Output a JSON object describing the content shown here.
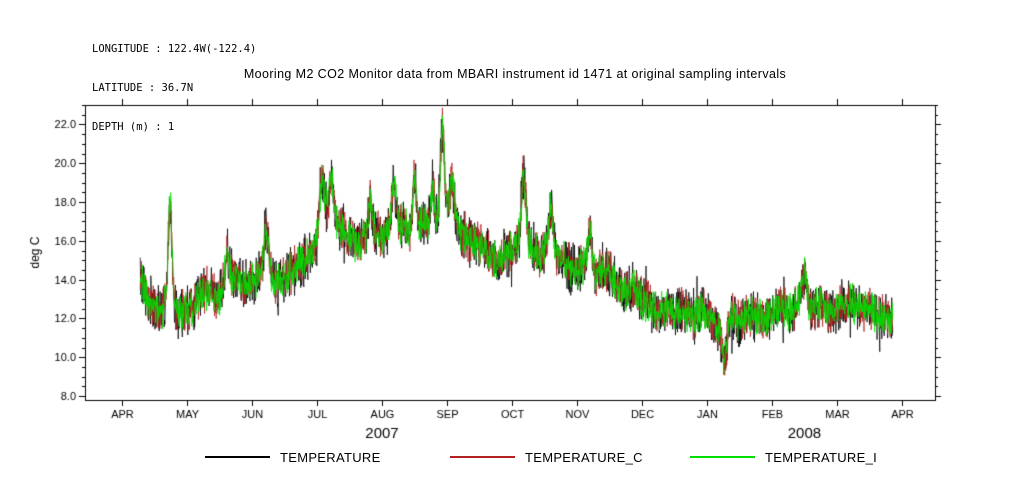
{
  "header": {
    "longitude": "LONGITUDE : 122.4W(-122.4)",
    "latitude": "LATITUDE : 36.7N",
    "depth": "DEPTH (m) : 1"
  },
  "title": "Mooring M2 CO2 Monitor data from MBARI instrument id 1471 at original sampling intervals",
  "chart_data": {
    "type": "line",
    "title": "Mooring M2 CO2 Monitor data from MBARI instrument id 1471 at original sampling intervals",
    "ylabel": "deg C",
    "ylim": [
      8.0,
      22.0
    ],
    "ytick_step": 2.0,
    "grid": false,
    "legend_position": "bottom",
    "x_tick_labels": [
      "APR",
      "MAY",
      "JUN",
      "JUL",
      "AUG",
      "SEP",
      "OCT",
      "NOV",
      "DEC",
      "JAN",
      "FEB",
      "MAR",
      "APR"
    ],
    "year_labels": [
      {
        "label": "2007",
        "center_month": 4.0
      },
      {
        "label": "2008",
        "center_month": 10.5
      }
    ],
    "x_range_months": [
      0.28,
      11.86
    ],
    "series": [
      {
        "name": "TEMPERATURE",
        "color": "#000000",
        "noise_amp": 1.5
      },
      {
        "name": "TEMPERATURE_C",
        "color": "#b22222",
        "noise_amp": 1.3
      },
      {
        "name": "TEMPERATURE_I",
        "color": "#00dd00",
        "noise_amp": 1.15
      }
    ],
    "baseline_anchors": [
      [
        0.28,
        14.2
      ],
      [
        0.4,
        13.0
      ],
      [
        0.55,
        12.4
      ],
      [
        0.7,
        12.6
      ],
      [
        0.85,
        12.2
      ],
      [
        1.0,
        12.4
      ],
      [
        1.15,
        12.8
      ],
      [
        1.3,
        13.5
      ],
      [
        1.45,
        13.0
      ],
      [
        1.6,
        13.8
      ],
      [
        1.75,
        14.2
      ],
      [
        1.9,
        13.6
      ],
      [
        2.05,
        13.9
      ],
      [
        2.2,
        14.8
      ],
      [
        2.35,
        13.8
      ],
      [
        2.5,
        14.2
      ],
      [
        2.65,
        14.6
      ],
      [
        2.8,
        14.9
      ],
      [
        2.95,
        15.5
      ],
      [
        3.1,
        16.8
      ],
      [
        3.25,
        17.3
      ],
      [
        3.4,
        16.5
      ],
      [
        3.55,
        15.9
      ],
      [
        3.7,
        16.1
      ],
      [
        3.85,
        16.6
      ],
      [
        4.0,
        16.2
      ],
      [
        4.15,
        16.5
      ],
      [
        4.3,
        16.9
      ],
      [
        4.45,
        16.4
      ],
      [
        4.6,
        17.0
      ],
      [
        4.75,
        16.7
      ],
      [
        4.9,
        17.2
      ],
      [
        5.05,
        17.5
      ],
      [
        5.2,
        16.6
      ],
      [
        5.35,
        16.0
      ],
      [
        5.5,
        15.8
      ],
      [
        5.65,
        15.3
      ],
      [
        5.8,
        15.0
      ],
      [
        5.95,
        15.4
      ],
      [
        6.1,
        15.8
      ],
      [
        6.3,
        15.6
      ],
      [
        6.45,
        15.2
      ],
      [
        6.55,
        15.9
      ],
      [
        6.7,
        15.3
      ],
      [
        6.85,
        14.7
      ],
      [
        7.0,
        14.4
      ],
      [
        7.15,
        14.9
      ],
      [
        7.3,
        14.3
      ],
      [
        7.45,
        14.6
      ],
      [
        7.6,
        13.8
      ],
      [
        7.75,
        13.3
      ],
      [
        7.9,
        13.5
      ],
      [
        8.05,
        12.9
      ],
      [
        8.2,
        12.4
      ],
      [
        8.35,
        12.6
      ],
      [
        8.5,
        12.2
      ],
      [
        8.65,
        12.6
      ],
      [
        8.8,
        12.1
      ],
      [
        8.95,
        12.3
      ],
      [
        9.1,
        11.9
      ],
      [
        9.25,
        11.6
      ],
      [
        9.4,
        12.1
      ],
      [
        9.55,
        11.8
      ],
      [
        9.7,
        12.3
      ],
      [
        9.85,
        11.9
      ],
      [
        10.0,
        12.2
      ],
      [
        10.15,
        12.6
      ],
      [
        10.3,
        12.3
      ],
      [
        10.45,
        12.9
      ],
      [
        10.6,
        12.5
      ],
      [
        10.75,
        12.8
      ],
      [
        10.9,
        12.3
      ],
      [
        11.05,
        12.6
      ],
      [
        11.2,
        12.9
      ],
      [
        11.35,
        12.4
      ],
      [
        11.5,
        12.6
      ],
      [
        11.65,
        12.1
      ],
      [
        11.86,
        11.9
      ]
    ],
    "spikes": [
      [
        0.74,
        5.2,
        0.045
      ],
      [
        1.62,
        1.6,
        0.04
      ],
      [
        2.22,
        2.0,
        0.045
      ],
      [
        3.08,
        2.6,
        0.055
      ],
      [
        3.22,
        2.0,
        0.045
      ],
      [
        3.82,
        1.6,
        0.035
      ],
      [
        4.18,
        2.4,
        0.045
      ],
      [
        4.5,
        2.7,
        0.04
      ],
      [
        4.78,
        2.0,
        0.035
      ],
      [
        4.93,
        4.4,
        0.045
      ],
      [
        5.08,
        1.8,
        0.04
      ],
      [
        6.18,
        3.6,
        0.05
      ],
      [
        6.6,
        2.0,
        0.04
      ],
      [
        7.2,
        1.8,
        0.04
      ],
      [
        9.27,
        -1.8,
        0.055
      ],
      [
        10.5,
        1.4,
        0.05
      ]
    ]
  }
}
